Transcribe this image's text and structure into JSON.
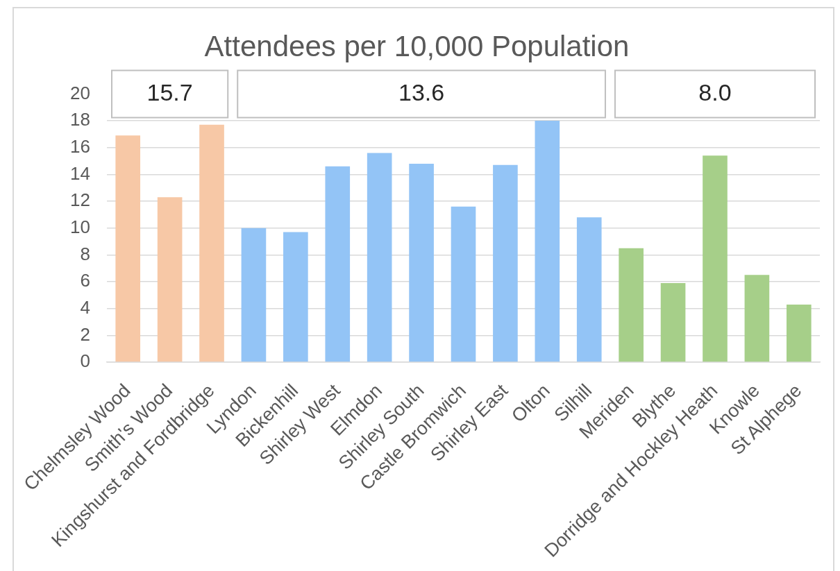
{
  "chart_data": {
    "type": "bar",
    "title": "Attendees per 10,000 Population",
    "categories": [
      "Chelmsley Wood",
      "Smith's Wood",
      "Kingshurst and Fordbridge",
      "Lyndon",
      "Bickenhill",
      "Shirley West",
      "Elmdon",
      "Shirley South",
      "Castle Bromwich",
      "Shirley East",
      "Olton",
      "Silhill",
      "Meriden",
      "Blythe",
      "Dorridge and Hockley Heath",
      "Knowle",
      "St Alphege"
    ],
    "values": [
      16.9,
      12.3,
      17.7,
      10.0,
      9.7,
      14.6,
      15.6,
      14.8,
      11.6,
      14.7,
      18.0,
      10.8,
      8.5,
      5.9,
      15.4,
      6.5,
      4.3
    ],
    "colors": [
      "#f7c8a6",
      "#f7c8a6",
      "#f7c8a6",
      "#93c4f6",
      "#93c4f6",
      "#93c4f6",
      "#93c4f6",
      "#93c4f6",
      "#93c4f6",
      "#93c4f6",
      "#93c4f6",
      "#93c4f6",
      "#a6cf89",
      "#a6cf89",
      "#a6cf89",
      "#a6cf89",
      "#a6cf89"
    ],
    "ylim": [
      0,
      20
    ],
    "yticks": [
      0,
      2,
      4,
      6,
      8,
      10,
      12,
      14,
      16,
      18,
      20
    ],
    "grid": "y",
    "annotations": [
      "15.7",
      "13.6",
      "8.0"
    ]
  }
}
